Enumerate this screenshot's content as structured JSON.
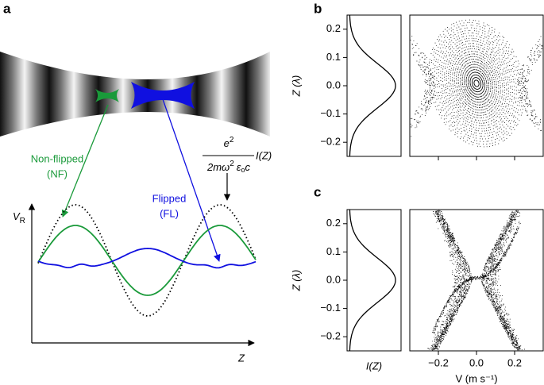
{
  "panel_a": {
    "label": "a",
    "nf": {
      "name": "Non-flipped",
      "abbr": "(NF)"
    },
    "fl": {
      "name": "Flipped",
      "abbr": "(FL)"
    },
    "formula": {
      "numerator": "e",
      "numerator_power": "2",
      "denominator": "2mω",
      "denominator_power": "2",
      "epsilon": "ε",
      "epsilon_sub": "o",
      "speed": "c",
      "intensity": "I(Z)"
    },
    "y_axis": "V",
    "y_axis_sub": "R",
    "x_axis": "Z"
  },
  "panel_b": {
    "label": "b",
    "ylabel": "Z (λ)",
    "ylim": [
      -0.25,
      0.25
    ],
    "yticks": [
      0.2,
      0.1,
      {
        "value": 0,
        "label": "0.0"
      },
      {
        "value": -0.1,
        "label": "−0.1"
      },
      {
        "value": -0.2,
        "label": "−0.2"
      }
    ]
  },
  "panel_c": {
    "label": "c",
    "ylabel": "Z (λ)",
    "ylim": [
      -0.25,
      0.25
    ],
    "yticks": [
      0.2,
      0.1,
      {
        "value": 0,
        "label": "0.0"
      },
      {
        "value": -0.1,
        "label": "−0.1"
      },
      {
        "value": -0.2,
        "label": "−0.2"
      }
    ],
    "profile_label": "I(Z)",
    "xlabel": "V (m s⁻¹)",
    "xlim": [
      -0.35,
      0.35
    ],
    "xticks": [
      {
        "value": -0.2,
        "label": "−0.2"
      },
      {
        "value": 0,
        "label": "0.0"
      },
      0.2
    ]
  }
}
